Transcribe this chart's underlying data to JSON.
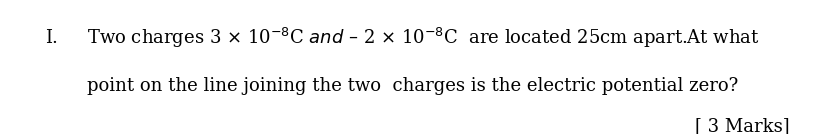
{
  "background_color": "#e8e8e8",
  "inner_background": "#ffffff",
  "number": "I.",
  "line1": "Two charges 3 $\\times$ 10$^{-8}$C $\\mathit{and}$ – 2 $\\times$ 10$^{-8}$C  are located 25cm apart.At what",
  "line2": "point on the line joining the two  charges is the electric potential zero?",
  "line3": "[ 3 Marks]",
  "font_size": 13,
  "font_family": "DejaVu Serif"
}
